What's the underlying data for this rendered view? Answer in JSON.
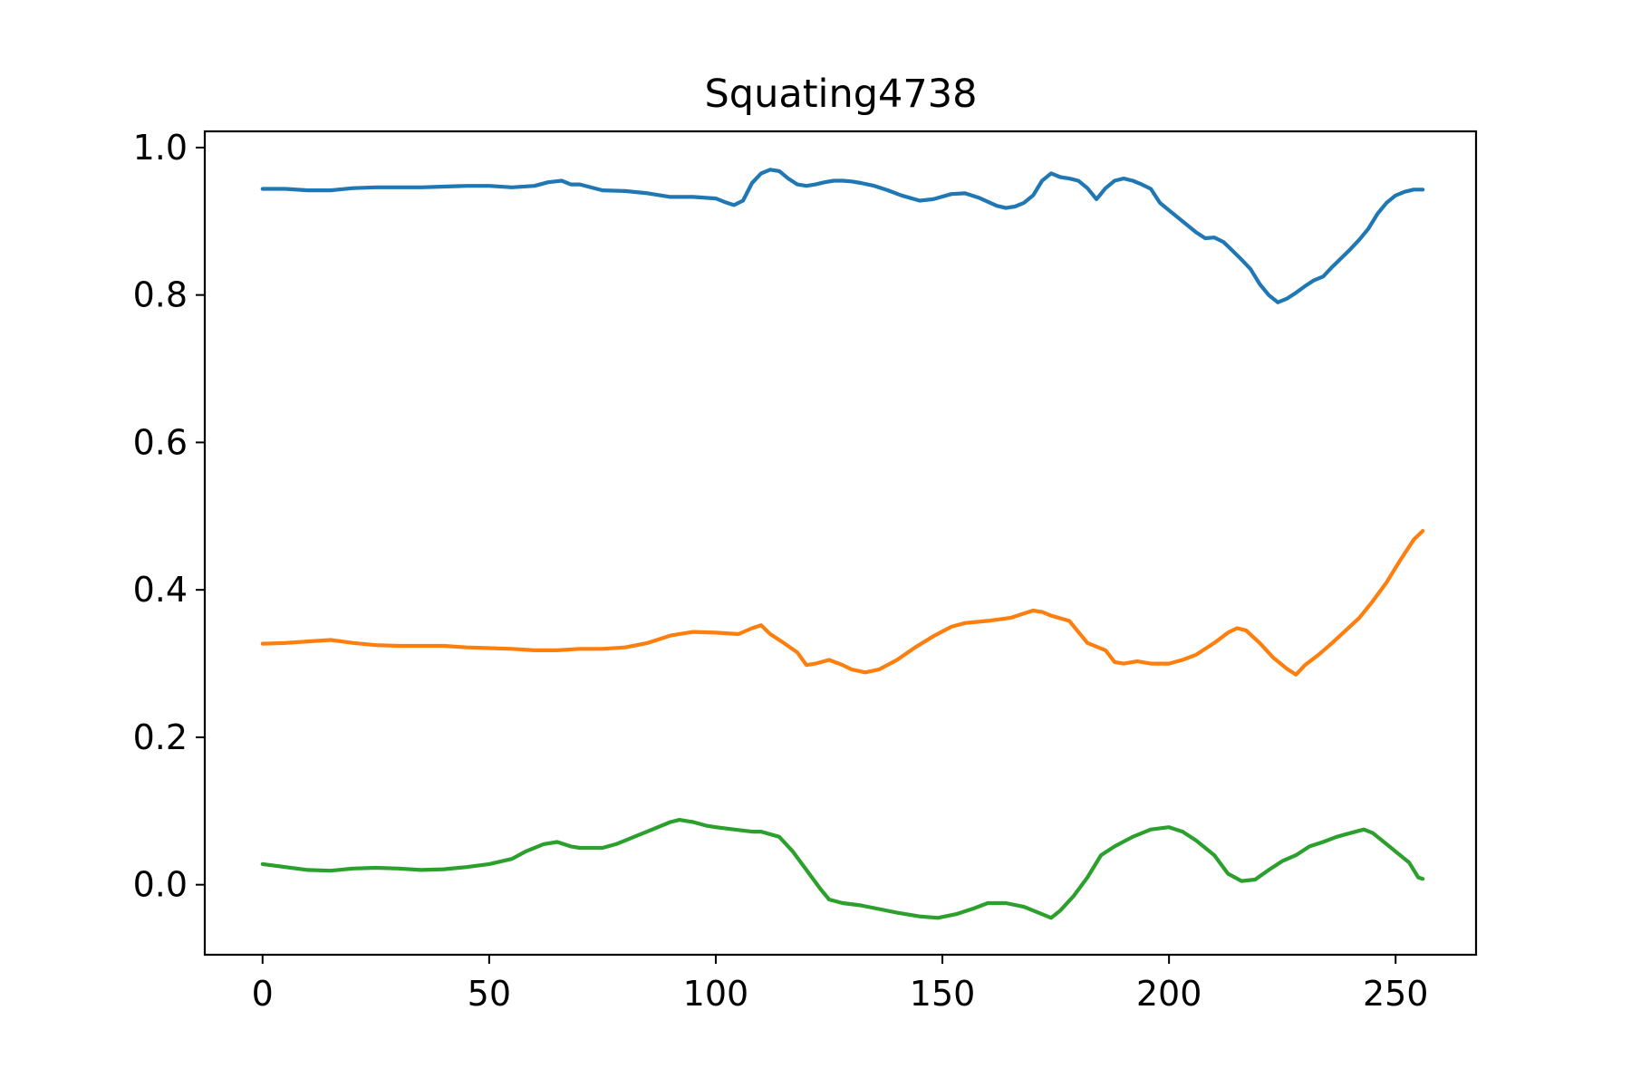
{
  "chart_data": {
    "type": "line",
    "title": "Squating4738",
    "xlabel": "",
    "ylabel": "",
    "xlim": [
      -12.75,
      267.75
    ],
    "ylim": [
      -0.095,
      1.022
    ],
    "grid": false,
    "legend": "none",
    "x_ticks": [
      {
        "value": 0,
        "label": "0"
      },
      {
        "value": 50,
        "label": "50"
      },
      {
        "value": 100,
        "label": "100"
      },
      {
        "value": 150,
        "label": "150"
      },
      {
        "value": 200,
        "label": "200"
      },
      {
        "value": 250,
        "label": "250"
      }
    ],
    "y_ticks": [
      {
        "value": 0.0,
        "label": "0.0"
      },
      {
        "value": 0.2,
        "label": "0.2"
      },
      {
        "value": 0.4,
        "label": "0.4"
      },
      {
        "value": 0.6,
        "label": "0.6"
      },
      {
        "value": 0.8,
        "label": "0.8"
      },
      {
        "value": 1.0,
        "label": "1.0"
      }
    ],
    "series": [
      {
        "color": "#1f77b4",
        "points": [
          [
            0,
            0.944
          ],
          [
            5,
            0.944
          ],
          [
            10,
            0.942
          ],
          [
            15,
            0.942
          ],
          [
            20,
            0.945
          ],
          [
            25,
            0.946
          ],
          [
            30,
            0.946
          ],
          [
            35,
            0.946
          ],
          [
            40,
            0.947
          ],
          [
            45,
            0.948
          ],
          [
            50,
            0.948
          ],
          [
            55,
            0.946
          ],
          [
            60,
            0.948
          ],
          [
            63,
            0.953
          ],
          [
            66,
            0.955
          ],
          [
            68,
            0.95
          ],
          [
            70,
            0.95
          ],
          [
            75,
            0.942
          ],
          [
            80,
            0.941
          ],
          [
            85,
            0.938
          ],
          [
            90,
            0.933
          ],
          [
            95,
            0.933
          ],
          [
            100,
            0.931
          ],
          [
            102,
            0.926
          ],
          [
            104,
            0.922
          ],
          [
            106,
            0.928
          ],
          [
            108,
            0.952
          ],
          [
            110,
            0.965
          ],
          [
            112,
            0.97
          ],
          [
            114,
            0.968
          ],
          [
            116,
            0.958
          ],
          [
            118,
            0.95
          ],
          [
            120,
            0.948
          ],
          [
            122,
            0.95
          ],
          [
            124,
            0.953
          ],
          [
            126,
            0.955
          ],
          [
            128,
            0.955
          ],
          [
            130,
            0.954
          ],
          [
            132,
            0.952
          ],
          [
            135,
            0.948
          ],
          [
            138,
            0.942
          ],
          [
            141,
            0.935
          ],
          [
            145,
            0.928
          ],
          [
            148,
            0.93
          ],
          [
            152,
            0.937
          ],
          [
            155,
            0.938
          ],
          [
            158,
            0.932
          ],
          [
            162,
            0.921
          ],
          [
            164,
            0.918
          ],
          [
            166,
            0.92
          ],
          [
            168,
            0.925
          ],
          [
            170,
            0.935
          ],
          [
            172,
            0.955
          ],
          [
            174,
            0.965
          ],
          [
            176,
            0.96
          ],
          [
            178,
            0.958
          ],
          [
            180,
            0.955
          ],
          [
            182,
            0.945
          ],
          [
            184,
            0.93
          ],
          [
            186,
            0.945
          ],
          [
            188,
            0.955
          ],
          [
            190,
            0.958
          ],
          [
            192,
            0.955
          ],
          [
            194,
            0.95
          ],
          [
            196,
            0.944
          ],
          [
            198,
            0.925
          ],
          [
            200,
            0.915
          ],
          [
            202,
            0.905
          ],
          [
            204,
            0.895
          ],
          [
            206,
            0.885
          ],
          [
            208,
            0.877
          ],
          [
            210,
            0.878
          ],
          [
            212,
            0.872
          ],
          [
            214,
            0.86
          ],
          [
            216,
            0.848
          ],
          [
            218,
            0.835
          ],
          [
            220,
            0.815
          ],
          [
            222,
            0.8
          ],
          [
            224,
            0.79
          ],
          [
            226,
            0.795
          ],
          [
            228,
            0.803
          ],
          [
            230,
            0.812
          ],
          [
            232,
            0.82
          ],
          [
            234,
            0.825
          ],
          [
            236,
            0.838
          ],
          [
            238,
            0.85
          ],
          [
            240,
            0.862
          ],
          [
            242,
            0.875
          ],
          [
            244,
            0.89
          ],
          [
            246,
            0.91
          ],
          [
            248,
            0.925
          ],
          [
            250,
            0.935
          ],
          [
            252,
            0.94
          ],
          [
            254,
            0.943
          ],
          [
            256,
            0.943
          ]
        ]
      },
      {
        "color": "#ff7f0e",
        "points": [
          [
            0,
            0.327
          ],
          [
            5,
            0.328
          ],
          [
            10,
            0.33
          ],
          [
            15,
            0.332
          ],
          [
            20,
            0.328
          ],
          [
            25,
            0.325
          ],
          [
            30,
            0.324
          ],
          [
            35,
            0.324
          ],
          [
            40,
            0.324
          ],
          [
            45,
            0.322
          ],
          [
            50,
            0.321
          ],
          [
            55,
            0.32
          ],
          [
            60,
            0.318
          ],
          [
            65,
            0.318
          ],
          [
            70,
            0.32
          ],
          [
            75,
            0.32
          ],
          [
            80,
            0.322
          ],
          [
            85,
            0.328
          ],
          [
            90,
            0.338
          ],
          [
            95,
            0.343
          ],
          [
            100,
            0.342
          ],
          [
            105,
            0.34
          ],
          [
            108,
            0.348
          ],
          [
            110,
            0.352
          ],
          [
            112,
            0.34
          ],
          [
            115,
            0.328
          ],
          [
            118,
            0.315
          ],
          [
            120,
            0.298
          ],
          [
            122,
            0.3
          ],
          [
            125,
            0.305
          ],
          [
            128,
            0.298
          ],
          [
            130,
            0.292
          ],
          [
            133,
            0.288
          ],
          [
            136,
            0.292
          ],
          [
            140,
            0.305
          ],
          [
            144,
            0.322
          ],
          [
            148,
            0.337
          ],
          [
            152,
            0.35
          ],
          [
            155,
            0.355
          ],
          [
            160,
            0.358
          ],
          [
            165,
            0.362
          ],
          [
            170,
            0.372
          ],
          [
            172,
            0.37
          ],
          [
            174,
            0.365
          ],
          [
            178,
            0.358
          ],
          [
            182,
            0.328
          ],
          [
            186,
            0.318
          ],
          [
            188,
            0.302
          ],
          [
            190,
            0.3
          ],
          [
            193,
            0.303
          ],
          [
            196,
            0.3
          ],
          [
            200,
            0.3
          ],
          [
            203,
            0.305
          ],
          [
            206,
            0.312
          ],
          [
            210,
            0.328
          ],
          [
            213,
            0.342
          ],
          [
            215,
            0.348
          ],
          [
            217,
            0.345
          ],
          [
            220,
            0.328
          ],
          [
            223,
            0.308
          ],
          [
            226,
            0.293
          ],
          [
            228,
            0.285
          ],
          [
            230,
            0.298
          ],
          [
            233,
            0.312
          ],
          [
            236,
            0.328
          ],
          [
            239,
            0.345
          ],
          [
            242,
            0.362
          ],
          [
            245,
            0.385
          ],
          [
            248,
            0.41
          ],
          [
            251,
            0.44
          ],
          [
            254,
            0.468
          ],
          [
            256,
            0.48
          ]
        ]
      },
      {
        "color": "#2ca02c",
        "points": [
          [
            0,
            0.028
          ],
          [
            5,
            0.024
          ],
          [
            10,
            0.02
          ],
          [
            15,
            0.019
          ],
          [
            20,
            0.022
          ],
          [
            25,
            0.023
          ],
          [
            30,
            0.022
          ],
          [
            35,
            0.02
          ],
          [
            40,
            0.021
          ],
          [
            45,
            0.024
          ],
          [
            50,
            0.028
          ],
          [
            55,
            0.035
          ],
          [
            58,
            0.045
          ],
          [
            62,
            0.055
          ],
          [
            65,
            0.058
          ],
          [
            68,
            0.052
          ],
          [
            70,
            0.05
          ],
          [
            75,
            0.05
          ],
          [
            78,
            0.055
          ],
          [
            82,
            0.065
          ],
          [
            86,
            0.075
          ],
          [
            90,
            0.085
          ],
          [
            92,
            0.088
          ],
          [
            95,
            0.085
          ],
          [
            98,
            0.08
          ],
          [
            100,
            0.078
          ],
          [
            104,
            0.075
          ],
          [
            108,
            0.072
          ],
          [
            110,
            0.072
          ],
          [
            114,
            0.065
          ],
          [
            117,
            0.045
          ],
          [
            120,
            0.02
          ],
          [
            123,
            -0.005
          ],
          [
            125,
            -0.02
          ],
          [
            128,
            -0.025
          ],
          [
            132,
            -0.028
          ],
          [
            136,
            -0.033
          ],
          [
            140,
            -0.038
          ],
          [
            145,
            -0.043
          ],
          [
            149,
            -0.045
          ],
          [
            153,
            -0.04
          ],
          [
            157,
            -0.032
          ],
          [
            160,
            -0.025
          ],
          [
            164,
            -0.025
          ],
          [
            168,
            -0.03
          ],
          [
            172,
            -0.04
          ],
          [
            174,
            -0.045
          ],
          [
            176,
            -0.035
          ],
          [
            179,
            -0.015
          ],
          [
            182,
            0.01
          ],
          [
            185,
            0.04
          ],
          [
            188,
            0.052
          ],
          [
            192,
            0.065
          ],
          [
            196,
            0.075
          ],
          [
            200,
            0.078
          ],
          [
            203,
            0.072
          ],
          [
            206,
            0.06
          ],
          [
            210,
            0.04
          ],
          [
            213,
            0.015
          ],
          [
            216,
            0.005
          ],
          [
            219,
            0.007
          ],
          [
            222,
            0.02
          ],
          [
            225,
            0.032
          ],
          [
            228,
            0.04
          ],
          [
            231,
            0.052
          ],
          [
            234,
            0.058
          ],
          [
            237,
            0.065
          ],
          [
            240,
            0.07
          ],
          [
            243,
            0.075
          ],
          [
            245,
            0.07
          ],
          [
            248,
            0.055
          ],
          [
            251,
            0.04
          ],
          [
            253,
            0.03
          ],
          [
            255,
            0.01
          ],
          [
            256,
            0.008
          ]
        ]
      }
    ]
  }
}
